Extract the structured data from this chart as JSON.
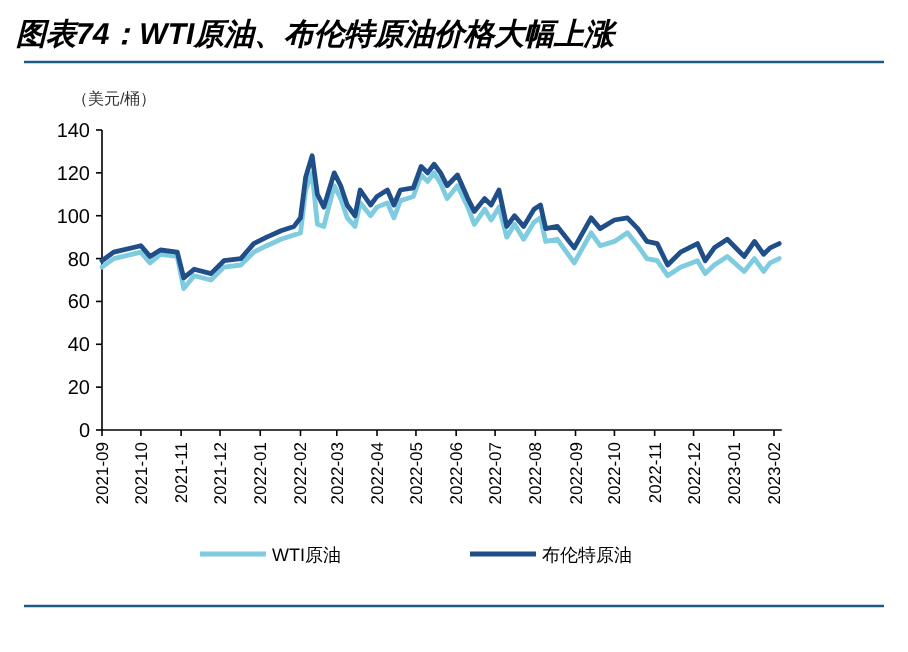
{
  "chart_data": {
    "type": "line",
    "title": "图表74：WTI原油、布伦特原油价格大幅上涨",
    "ylabel": "（美元/桶）",
    "x": [
      "2021-09-01",
      "2021-09-10",
      "2021-10-01",
      "2021-10-08",
      "2021-10-16",
      "2021-10-29",
      "2021-11-03",
      "2021-11-11",
      "2021-11-24",
      "2021-12-04",
      "2021-12-17",
      "2021-12-27",
      "2022-01-06",
      "2022-01-17",
      "2022-01-27",
      "2022-02-01",
      "2022-02-05",
      "2022-02-10",
      "2022-02-14",
      "2022-02-19",
      "2022-02-27",
      "2022-03-04",
      "2022-03-09",
      "2022-03-15",
      "2022-03-19",
      "2022-03-27",
      "2022-04-01",
      "2022-04-09",
      "2022-04-14",
      "2022-04-19",
      "2022-04-29",
      "2022-05-05",
      "2022-05-10",
      "2022-05-15",
      "2022-05-20",
      "2022-05-25",
      "2022-06-02",
      "2022-06-10",
      "2022-06-15",
      "2022-06-23",
      "2022-06-28",
      "2022-07-04",
      "2022-07-10",
      "2022-07-16",
      "2022-07-23",
      "2022-07-31",
      "2022-08-05",
      "2022-08-09",
      "2022-08-18",
      "2022-08-31",
      "2022-09-13",
      "2022-09-20",
      "2022-10-01",
      "2022-10-11",
      "2022-10-19",
      "2022-10-26",
      "2022-11-03",
      "2022-11-11",
      "2022-11-21",
      "2022-12-04",
      "2022-12-10",
      "2022-12-17",
      "2022-12-27",
      "2023-01-09",
      "2023-01-17",
      "2023-01-24",
      "2023-01-29",
      "2023-02-05"
    ],
    "series": [
      {
        "name": "WTI原油",
        "color": "#7fcbe0",
        "values": [
          76,
          80,
          83,
          78,
          82,
          81,
          66,
          72,
          70,
          76,
          77,
          83,
          86,
          89,
          91,
          92,
          112,
          120,
          96,
          95,
          114,
          108,
          99,
          95,
          106,
          100,
          104,
          106,
          99,
          107,
          109,
          119,
          116,
          120,
          115,
          108,
          114,
          104,
          96,
          103,
          98,
          104,
          90,
          96,
          89,
          97,
          99,
          88,
          89,
          78,
          92,
          86,
          88,
          92,
          86,
          80,
          79,
          72,
          76,
          79,
          73,
          77,
          81,
          74,
          80,
          74,
          78,
          80
        ]
      },
      {
        "name": "布伦特原油",
        "color": "#1f4e89",
        "values": [
          79,
          83,
          86,
          81,
          84,
          83,
          71,
          75,
          73,
          79,
          80,
          87,
          90,
          93,
          95,
          99,
          118,
          128,
          110,
          104,
          120,
          114,
          105,
          100,
          112,
          105,
          109,
          112,
          105,
          112,
          113,
          123,
          120,
          124,
          120,
          114,
          119,
          108,
          102,
          108,
          105,
          112,
          95,
          100,
          95,
          103,
          105,
          94,
          95,
          85,
          99,
          94,
          98,
          99,
          94,
          88,
          87,
          77,
          83,
          87,
          79,
          85,
          89,
          81,
          88,
          82,
          85,
          87
        ]
      }
    ],
    "xlim": [
      "2021-09-01",
      "2023-02-07"
    ],
    "xticks": [
      {
        "value": "2021-09-01",
        "label": "2021-09"
      },
      {
        "value": "2021-10-01",
        "label": "2021-10"
      },
      {
        "value": "2021-11-01",
        "label": "2021-11"
      },
      {
        "value": "2021-12-01",
        "label": "2021-12"
      },
      {
        "value": "2022-01-01",
        "label": "2022-01"
      },
      {
        "value": "2022-02-01",
        "label": "2022-02"
      },
      {
        "value": "2022-03-01",
        "label": "2022-03"
      },
      {
        "value": "2022-04-01",
        "label": "2022-04"
      },
      {
        "value": "2022-05-01",
        "label": "2022-05"
      },
      {
        "value": "2022-06-01",
        "label": "2022-06"
      },
      {
        "value": "2022-07-01",
        "label": "2022-07"
      },
      {
        "value": "2022-08-01",
        "label": "2022-08"
      },
      {
        "value": "2022-09-01",
        "label": "2022-09"
      },
      {
        "value": "2022-10-01",
        "label": "2022-10"
      },
      {
        "value": "2022-11-01",
        "label": "2022-11"
      },
      {
        "value": "2022-12-01",
        "label": "2022-12"
      },
      {
        "value": "2023-01-01",
        "label": "2023-01"
      },
      {
        "value": "2023-02-01",
        "label": "2023-02"
      }
    ],
    "ylim": [
      0,
      140
    ],
    "yticks": [
      0,
      20,
      40,
      60,
      80,
      100,
      120,
      140
    ],
    "grid": false,
    "legend": "bottom",
    "marker": "none",
    "line_style": "solid"
  }
}
